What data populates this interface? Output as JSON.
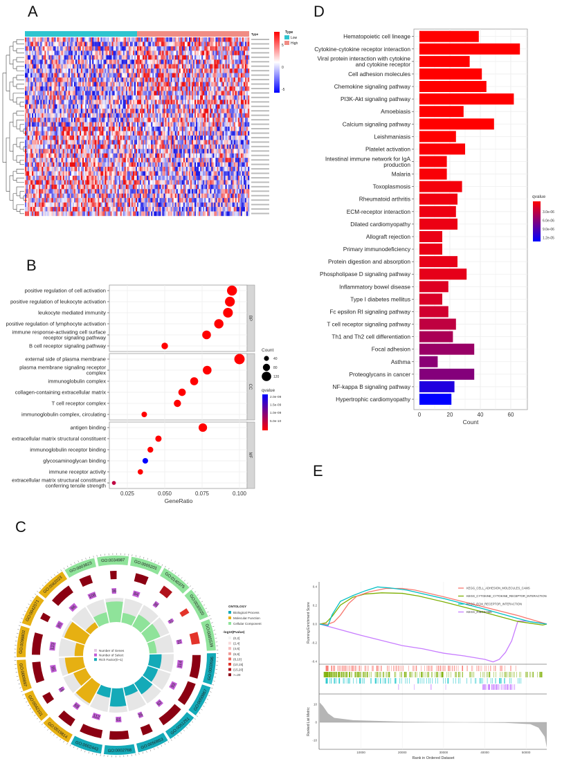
{
  "panel_labels": {
    "a": "A",
    "b": "B",
    "c": "C",
    "d": "D",
    "e": "E"
  },
  "chart_data": [
    {
      "id": "A",
      "type": "heatmap",
      "rows": 40,
      "group_columns": {
        "Low": 80,
        "High": 80
      },
      "legend_type": {
        "title": "Type",
        "items": [
          {
            "label": "Low",
            "color": "#2ec4cf"
          },
          {
            "label": "High",
            "color": "#f08c84"
          }
        ]
      },
      "annotation_label": "Type",
      "color_scale": {
        "ticks": [
          "5",
          "0",
          "-5"
        ],
        "colors": [
          "#ff0000",
          "#ffffff",
          "#0000ff"
        ]
      }
    },
    {
      "id": "B",
      "type": "scatter",
      "xlabel": "GeneRatio",
      "xticks": [
        0.025,
        0.05,
        0.075,
        0.1
      ],
      "xtick_labels": [
        "0.025",
        "0.050",
        "0.075",
        "0.100"
      ],
      "facets": [
        {
          "name": "BP",
          "terms": [
            {
              "label": "positive regulation of cell\nactivation",
              "ratio": 0.095,
              "count": 130,
              "q": 1e-10
            },
            {
              "label": "positive regulation of\nleukocyte activation",
              "ratio": 0.0936,
              "count": 128,
              "q": 1e-10
            },
            {
              "label": "leukocyte mediated immunity",
              "ratio": 0.0923,
              "count": 126,
              "q": 1e-10
            },
            {
              "label": "positive regulation of\nlymphocyte activation",
              "ratio": 0.0862,
              "count": 118,
              "q": 1e-10
            },
            {
              "label": "immune response-activating cell\nsurface receptor signaling pathway",
              "ratio": 0.078,
              "count": 107,
              "q": 1e-10
            },
            {
              "label": "B cell receptor signaling pathway",
              "ratio": 0.05,
              "count": 68,
              "q": 1e-10
            }
          ]
        },
        {
          "name": "CC",
          "terms": [
            {
              "label": "external side of plasma\nmembrane",
              "ratio": 0.1,
              "count": 137,
              "q": 1e-10
            },
            {
              "label": "plasma membrane signaling\nreceptor complex",
              "ratio": 0.0784,
              "count": 107,
              "q": 1e-10
            },
            {
              "label": "immunoglobulin complex",
              "ratio": 0.0697,
              "count": 95,
              "q": 1e-10
            },
            {
              "label": "collagen-containing\nextracellular matrix",
              "ratio": 0.0616,
              "count": 84,
              "q": 1e-10
            },
            {
              "label": "T cell receptor complex",
              "ratio": 0.0585,
              "count": 80,
              "q": 1e-10
            },
            {
              "label": "immunoglobulin complex,\ncirculating",
              "ratio": 0.0363,
              "count": 50,
              "q": 1e-10
            }
          ]
        },
        {
          "name": "MF",
          "terms": [
            {
              "label": "antigen binding",
              "ratio": 0.0755,
              "count": 103,
              "q": 1e-10
            },
            {
              "label": "extracellular matrix\nstructural constituent",
              "ratio": 0.0458,
              "count": 63,
              "q": 1e-10
            },
            {
              "label": "immunoglobulin receptor\nbinding",
              "ratio": 0.0404,
              "count": 55,
              "q": 1e-10
            },
            {
              "label": "glycosaminoglycan binding",
              "ratio": 0.037,
              "count": 51,
              "q": 2.1e-09
            },
            {
              "label": "immune receptor activity",
              "ratio": 0.0337,
              "count": 46,
              "q": 1e-10
            },
            {
              "label": "extracellular matrix\nstructural constituent\nconferring tensile strength",
              "ratio": 0.016,
              "count": 22,
              "q": 6e-10
            }
          ]
        }
      ],
      "size_legend": {
        "title": "Count",
        "items": [
          40,
          80,
          120
        ]
      },
      "color_legend": {
        "title": "qvalue",
        "ticks": [
          "2.0e-09",
          "1.5e-09",
          "1.0e-09",
          "5.0e-10"
        ],
        "low_color": "#ff0000",
        "high_color": "#0000ff"
      }
    },
    {
      "id": "C",
      "type": "circular",
      "ontology_legend": {
        "title": "ONTOLOGY",
        "items": [
          {
            "label": "Biological Process",
            "color": "#14aab8"
          },
          {
            "label": "Molecular Function",
            "color": "#e6b012"
          },
          {
            "label": "Cellular Component",
            "color": "#8fe39a"
          }
        ]
      },
      "pvalue_legend": {
        "title": "-log10(Pvalue)",
        "items": [
          {
            "label": "(0,2]",
            "color": "#f2f2f2"
          },
          {
            "label": "(2,4]",
            "color": "#f6dada"
          },
          {
            "label": "(4,6]",
            "color": "#f5bcbc"
          },
          {
            "label": "(6,8]",
            "color": "#f19a95"
          },
          {
            "label": "(8,10]",
            "color": "#ea6f66"
          },
          {
            "label": "(10,15]",
            "color": "#e3342a"
          },
          {
            "label": "(15,20]",
            "color": "#b0121b"
          },
          {
            "label": ">=20",
            "color": "#8b0012"
          }
        ]
      },
      "inner_legend": [
        {
          "label": "Number of Genes",
          "color": "#e3c8e3"
        },
        {
          "label": "Number of Select",
          "color": "#c15bd6"
        },
        {
          "label": "Rich Factor(0~1)",
          "color": "#14aab8"
        }
      ],
      "terms": [
        {
          "id": "GO:0003823",
          "ont": "CC",
          "select": 108,
          "rich": 0.45,
          "genes": 0.45,
          "pcat": 7
        },
        {
          "id": "GO:0034987",
          "ont": "CC",
          "select": 36,
          "rich": 0.85,
          "genes": 0.25,
          "pcat": 7
        },
        {
          "id": "GO:0005201",
          "ont": "CC",
          "select": 84,
          "rich": 0.4,
          "genes": 0.5,
          "pcat": 7
        },
        {
          "id": "GO:0140375",
          "ont": "CC",
          "select": 36,
          "rich": 0.55,
          "genes": 0.4,
          "pcat": 6
        },
        {
          "id": "GO:0030020",
          "ont": "CC",
          "select": 10,
          "rich": 0.6,
          "genes": 0.2,
          "pcat": 5
        },
        {
          "id": "GO:0005539",
          "ont": "CC",
          "select": 31,
          "rich": 0.3,
          "genes": 0.45,
          "pcat": 5
        },
        {
          "id": "GO:0002696",
          "ont": "BP",
          "select": 114,
          "rich": 0.5,
          "genes": 0.9,
          "pcat": 7
        },
        {
          "id": "GO:0050867",
          "ont": "BP",
          "select": 93,
          "rich": 0.45,
          "genes": 0.9,
          "pcat": 7
        },
        {
          "id": "GO:0051251",
          "ont": "BP",
          "select": 62,
          "rich": 0.55,
          "genes": 0.9,
          "pcat": 7
        },
        {
          "id": "GO:0050853",
          "ont": "BP",
          "select": 35,
          "rich": 0.35,
          "genes": 0.4,
          "pcat": 7
        },
        {
          "id": "GO:0002768",
          "ont": "BP",
          "select": 61,
          "rich": 0.75,
          "genes": 0.75,
          "pcat": 7
        },
        {
          "id": "GO:0002443",
          "ont": "BP",
          "select": 112,
          "rich": 0.4,
          "genes": 0.85,
          "pcat": 7
        },
        {
          "id": "GO:0019814",
          "ont": "MF",
          "select": 69,
          "rich": 0.9,
          "genes": 0.6,
          "pcat": 7
        },
        {
          "id": "GO:0042101",
          "ont": "MF",
          "select": 18,
          "rich": 0.55,
          "genes": 0.35,
          "pcat": 7
        },
        {
          "id": "GO:0009897",
          "ont": "MF",
          "select": 95,
          "rich": 0.75,
          "genes": 0.8,
          "pcat": 7
        },
        {
          "id": "GO:0098802",
          "ont": "MF",
          "select": 123,
          "rich": 0.35,
          "genes": 0.85,
          "pcat": 7
        },
        {
          "id": "GO:0042571",
          "ont": "MF",
          "select": 85,
          "rich": 0.9,
          "genes": 0.25,
          "pcat": 7
        },
        {
          "id": "GO:0062023",
          "ont": "MF",
          "select": 96,
          "rich": 0.25,
          "genes": 0.85,
          "pcat": 7
        }
      ]
    },
    {
      "id": "D",
      "type": "bar",
      "orientation": "horizontal",
      "xlabel": "Count",
      "xlim": [
        0,
        70
      ],
      "xticks": [
        0,
        20,
        40,
        60
      ],
      "categories": [
        "Hematopoietic cell lineage",
        "Cytokine-cytokine receptor\ninteraction",
        "Viral protein interaction\nwith cytokine and cytokine\nreceptor",
        "Cell adhesion molecules",
        "Chemokine signaling pathway",
        "PI3K-Akt signaling pathway",
        "Amoebiasis",
        "Calcium signaling pathway",
        "Leishmaniasis",
        "Platelet activation",
        "Intestinal immune network\nfor IgA production",
        "Malaria",
        "Toxoplasmosis",
        "Rheumatoid arthritis",
        "ECM-receptor interaction",
        "Dilated cardiomyopathy",
        "Allograft rejection",
        "Primary immunodeficiency",
        "Protein digestion and\nabsorption",
        "Phospholipase D signaling\npathway",
        "Inflammatory bowel disease",
        "Type I diabetes mellitus",
        "Fc epsilon RI signaling\npathway",
        "T cell receptor signaling\npathway",
        "Th1 and Th2 cell\ndifferentiation",
        "Focal adhesion",
        "Asthma",
        "Proteoglycans in cancer",
        "NF-kappa B signaling pathway",
        "Hypertrophic cardiomyopathy"
      ],
      "values": [
        39,
        66,
        33,
        41,
        44,
        62,
        29,
        49,
        24,
        30,
        18,
        18,
        28,
        25,
        24,
        25,
        15,
        15,
        25,
        31,
        19,
        15,
        19,
        24,
        22,
        36,
        12,
        36,
        23,
        21
      ],
      "qvalues": [
        1e-08,
        1e-08,
        1e-08,
        1e-08,
        1e-08,
        1e-08,
        1e-08,
        1e-08,
        1e-08,
        2e-07,
        3e-07,
        3e-07,
        5e-07,
        7e-07,
        8e-07,
        9e-07,
        1e-06,
        1e-06,
        1.1e-06,
        1.2e-06,
        1.6e-06,
        1.8e-06,
        2.2e-06,
        3e-06,
        4e-06,
        4.8e-06,
        5.5e-06,
        5.8e-06,
        1.05e-05,
        1.2e-05
      ],
      "color_legend": {
        "title": "qvalue",
        "ticks": [
          "3.0e-06",
          "6.0e-06",
          "9.0e-06",
          "1.2e-05"
        ],
        "values": [
          3e-06,
          6e-06,
          9e-06,
          1.2e-05
        ],
        "low_color": "#ff0000",
        "high_color": "#0000ff"
      }
    },
    {
      "id": "E",
      "type": "line",
      "ylabel_top": "Running Enrichment Score",
      "ylabel_bottom": "Ranked List Metric",
      "xlabel": "Rank in Ordered Dataset",
      "xlim": [
        0,
        55000
      ],
      "xticks": [
        10000,
        20000,
        30000,
        40000,
        50000
      ],
      "ylim_top": [
        -0.45,
        0.45
      ],
      "yticks_top": [
        0.4,
        0.2,
        0.0,
        -0.2,
        -0.4
      ],
      "ytick_labels_top": [
        "0.4",
        "0.2",
        "0.0",
        "-0.2",
        "-0.4"
      ],
      "ylim_bottom": [
        -16,
        14
      ],
      "yticks_bottom": [
        10,
        0,
        -10
      ],
      "series": [
        {
          "name": "KEGG_CELL_ADHESION_MOLECULES_CAMS",
          "color": "#f8766d",
          "points": [
            [
              0,
              0
            ],
            [
              2000,
              0
            ],
            [
              3500,
              0.02
            ],
            [
              5000,
              0.1
            ],
            [
              7000,
              0.22
            ],
            [
              9000,
              0.3
            ],
            [
              12000,
              0.35
            ],
            [
              16000,
              0.38
            ],
            [
              20000,
              0.38
            ],
            [
              23000,
              0.37
            ],
            [
              30000,
              0.29
            ],
            [
              40000,
              0.18
            ],
            [
              48000,
              0.09
            ],
            [
              55000,
              0
            ]
          ],
          "hits": [
            [
              1500,
              48000,
              150
            ]
          ]
        },
        {
          "name": "KEGG_CYTOKINE_CYTOKINE_RECEPTOR_INTERACTION",
          "color": "#7cae00",
          "points": [
            [
              0,
              0
            ],
            [
              1500,
              0.01
            ],
            [
              3000,
              0.08
            ],
            [
              5000,
              0.2
            ],
            [
              8000,
              0.29
            ],
            [
              11000,
              0.32
            ],
            [
              15000,
              0.34
            ],
            [
              20000,
              0.33
            ],
            [
              24000,
              0.3
            ],
            [
              30000,
              0.24
            ],
            [
              40000,
              0.13
            ],
            [
              48000,
              0.03
            ],
            [
              54000,
              -0.01
            ],
            [
              55000,
              0
            ]
          ],
          "hits": [
            [
              1000,
              54000,
              260
            ]
          ]
        },
        {
          "name": "KEGG_ECM_RECEPTOR_INTERACTION",
          "color": "#00bfc4",
          "points": [
            [
              0,
              0
            ],
            [
              2000,
              -0.02
            ],
            [
              3000,
              0.1
            ],
            [
              5000,
              0.24
            ],
            [
              8000,
              0.31
            ],
            [
              11000,
              0.36
            ],
            [
              14000,
              0.4
            ],
            [
              17000,
              0.39
            ],
            [
              21000,
              0.36
            ],
            [
              30000,
              0.27
            ],
            [
              40000,
              0.16
            ],
            [
              48000,
              0.06
            ],
            [
              51000,
              0.03
            ],
            [
              55000,
              0
            ]
          ],
          "hits": [
            [
              1500,
              52000,
              110
            ]
          ]
        },
        {
          "name": "KEGG_RIBOSOME",
          "color": "#c77cff",
          "points": [
            [
              0,
              0
            ],
            [
              10000,
              -0.12
            ],
            [
              20000,
              -0.23
            ],
            [
              25000,
              -0.27
            ],
            [
              30000,
              -0.31
            ],
            [
              35000,
              -0.34
            ],
            [
              40000,
              -0.38
            ],
            [
              42000,
              -0.4
            ],
            [
              43500,
              -0.38
            ],
            [
              45000,
              -0.3
            ],
            [
              46500,
              -0.18
            ],
            [
              48000,
              0.03
            ],
            [
              50000,
              0.03
            ],
            [
              55000,
              0
            ]
          ],
          "hits": [
            [
              39500,
              47500,
              70
            ],
            [
              19000,
              36000,
              6
            ]
          ]
        }
      ],
      "metric": [
        [
          0,
          11
        ],
        [
          800,
          9
        ],
        [
          2000,
          5
        ],
        [
          3500,
          2.5
        ],
        [
          8000,
          1.2
        ],
        [
          20000,
          0.4
        ],
        [
          35000,
          0
        ],
        [
          45000,
          -0.3
        ],
        [
          51000,
          -1
        ],
        [
          53000,
          -3
        ],
        [
          54500,
          -8
        ],
        [
          55000,
          -14
        ]
      ]
    }
  ]
}
